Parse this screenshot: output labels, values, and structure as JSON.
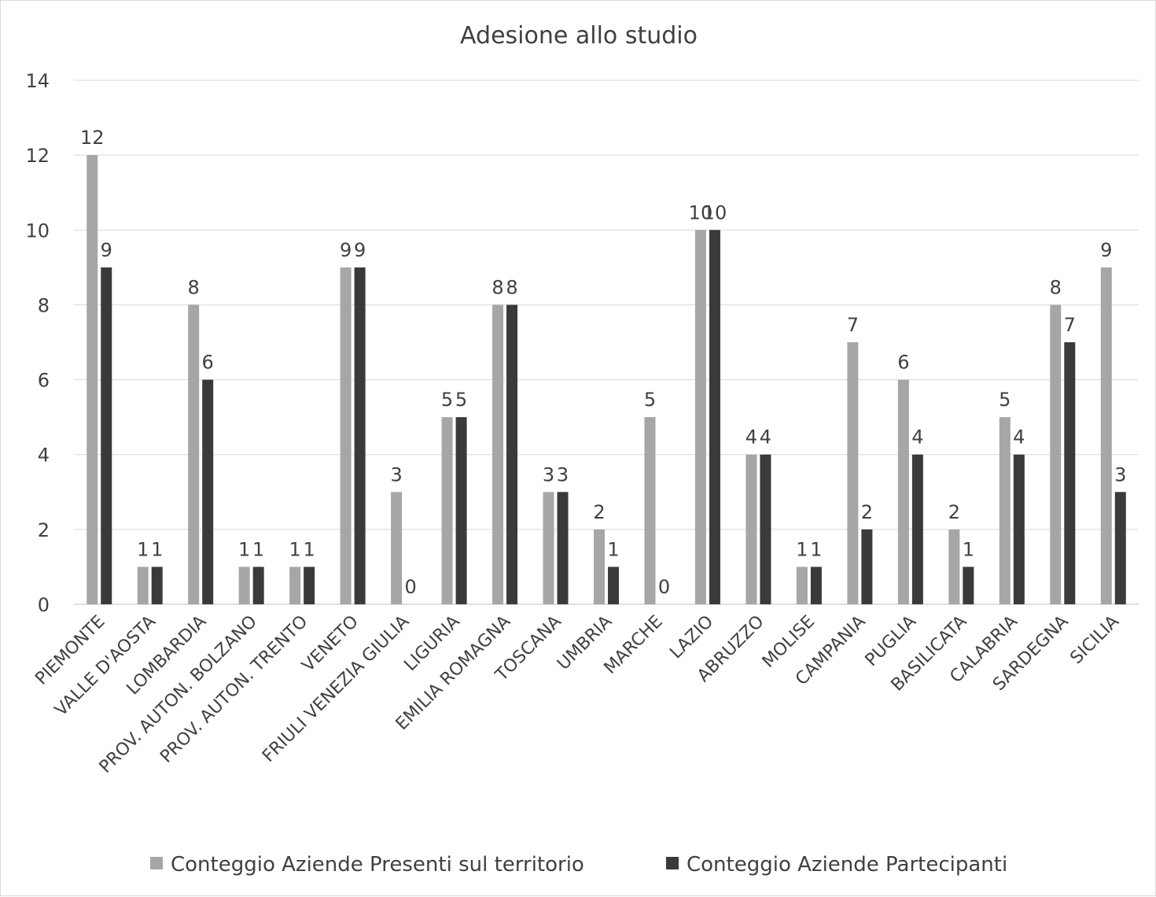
{
  "chart_data": {
    "type": "bar",
    "title": "Adesione allo studio",
    "xlabel": "",
    "ylabel": "",
    "ylim": [
      0,
      14
    ],
    "yticks": [
      0,
      2,
      4,
      6,
      8,
      10,
      12,
      14
    ],
    "grid": true,
    "legend_position": "bottom",
    "categories": [
      "PIEMONTE",
      "VALLE D'AOSTA",
      "LOMBARDIA",
      "PROV. AUTON. BOLZANO",
      "PROV. AUTON. TRENTO",
      "VENETO",
      "FRIULI VENEZIA GIULIA",
      "LIGURIA",
      "EMILIA ROMAGNA",
      "TOSCANA",
      "UMBRIA",
      "MARCHE",
      "LAZIO",
      "ABRUZZO",
      "MOLISE",
      "CAMPANIA",
      "PUGLIA",
      "BASILICATA",
      "CALABRIA",
      "SARDEGNA",
      "SICILIA"
    ],
    "series": [
      {
        "name": "Conteggio Aziende Presenti sul territorio",
        "color": "#a6a6a6",
        "values": [
          12,
          1,
          8,
          1,
          1,
          9,
          3,
          5,
          8,
          3,
          2,
          5,
          10,
          4,
          1,
          7,
          6,
          2,
          5,
          8,
          9
        ]
      },
      {
        "name": "Conteggio Aziende Partecipanti",
        "color": "#3a3a3a",
        "values": [
          9,
          1,
          6,
          1,
          1,
          9,
          0,
          5,
          8,
          3,
          1,
          0,
          10,
          4,
          1,
          2,
          4,
          1,
          4,
          7,
          3
        ]
      }
    ]
  }
}
